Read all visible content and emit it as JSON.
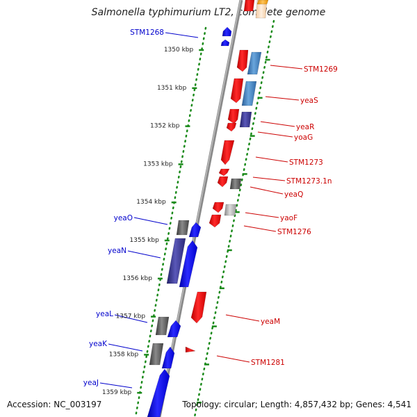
{
  "title": "Salmonella typhimurium LT2, complete genome",
  "footer": {
    "accession": "Accession: NC_003197",
    "topology": "Topology: circular; Length: 4,857,432 bp; Genes: 4,541"
  },
  "colors": {
    "forward_gene": "#0000ee",
    "reverse_gene": "#ee0000",
    "forward_label": "#0000cc",
    "reverse_label": "#cc0000",
    "tick": "#1a8a1a",
    "backbone": "#888888"
  },
  "scale": {
    "unit": "kbp",
    "ticks": [
      {
        "value": 1350,
        "label": "1350 kbp"
      },
      {
        "value": 1351,
        "label": "1351 kbp"
      },
      {
        "value": 1352,
        "label": "1352 kbp"
      },
      {
        "value": 1353,
        "label": "1353 kbp"
      },
      {
        "value": 1354,
        "label": "1354 kbp"
      },
      {
        "value": 1355,
        "label": "1355 kbp"
      },
      {
        "value": 1356,
        "label": "1356 kbp"
      },
      {
        "value": 1357,
        "label": "1357 kbp"
      },
      {
        "value": 1358,
        "label": "1358 kbp"
      },
      {
        "value": 1359,
        "label": "1359 kbp"
      }
    ]
  },
  "gene_labels": [
    {
      "label": "STM1268",
      "strand": "forward"
    },
    {
      "label": "STM1269",
      "strand": "reverse"
    },
    {
      "label": "yeaS",
      "strand": "reverse"
    },
    {
      "label": "yeaR",
      "strand": "reverse"
    },
    {
      "label": "yoaG",
      "strand": "reverse"
    },
    {
      "label": "STM1273",
      "strand": "reverse"
    },
    {
      "label": "STM1273.1n",
      "strand": "reverse"
    },
    {
      "label": "yeaQ",
      "strand": "reverse"
    },
    {
      "label": "yaoF",
      "strand": "reverse"
    },
    {
      "label": "STM1276",
      "strand": "reverse"
    },
    {
      "label": "yeaO",
      "strand": "forward"
    },
    {
      "label": "yeaN",
      "strand": "forward"
    },
    {
      "label": "yeaM",
      "strand": "reverse"
    },
    {
      "label": "yeaL",
      "strand": "forward"
    },
    {
      "label": "yeaK",
      "strand": "forward"
    },
    {
      "label": "STM1281",
      "strand": "reverse"
    },
    {
      "label": "yeaJ",
      "strand": "forward"
    }
  ]
}
